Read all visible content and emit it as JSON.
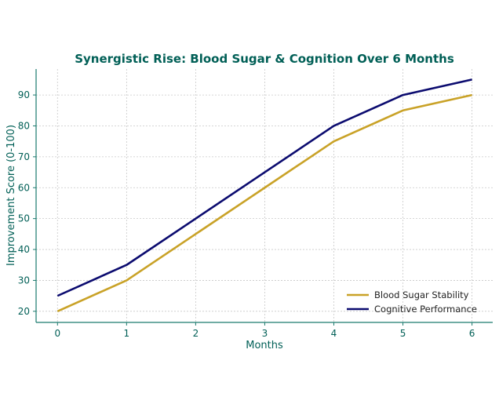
{
  "chart_data": {
    "type": "line",
    "title": "Synergistic Rise: Blood Sugar & Cognition Over 6 Months",
    "xlabel": "Months",
    "ylabel": "Improvement Score (0-100)",
    "x": [
      0,
      1,
      2,
      3,
      4,
      5,
      6
    ],
    "xticks": [
      "0",
      "1",
      "2",
      "3",
      "4",
      "5",
      "6"
    ],
    "yticks": [
      "20",
      "30",
      "40",
      "50",
      "60",
      "70",
      "80",
      "90"
    ],
    "xlim": [
      -0.31,
      6.3
    ],
    "ylim": [
      16.4,
      98.4
    ],
    "grid": true,
    "legend_position": "bottom-right",
    "series": [
      {
        "name": "Blood Sugar Stability",
        "color": "#c9a227",
        "values": [
          20,
          30,
          45,
          60,
          75,
          85,
          90
        ]
      },
      {
        "name": "Cognitive Performance",
        "color": "#0b0b6f",
        "values": [
          25,
          35,
          50,
          65,
          80,
          90,
          95
        ]
      }
    ],
    "colors": {
      "axis": "#1a7a6e",
      "text": "#005f56",
      "grid": "#c8c8c8"
    }
  }
}
